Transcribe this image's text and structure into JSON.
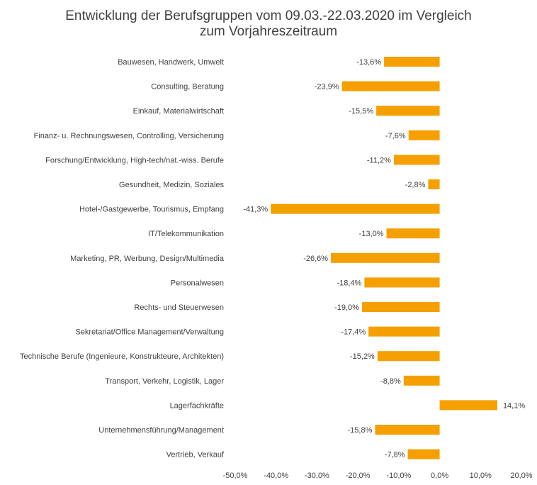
{
  "chart_data": {
    "type": "bar",
    "orientation": "horizontal",
    "title": [
      "Entwicklung der Berufsgruppen vom 09.03.-22.03.2020 im Vergleich",
      "zum Vorjahreszeitraum"
    ],
    "categories": [
      "Bauwesen, Handwerk, Umwelt",
      "Consulting, Beratung",
      "Einkauf, Materialwirtschaft",
      "Finanz- u. Rechnungswesen, Controlling, Versicherung",
      "Forschung/Entwicklung, High-tech/nat.-wiss. Berufe",
      "Gesundheit, Medizin, Soziales",
      "Hotel-/Gastgewerbe, Tourismus, Empfang",
      "IT/Telekommunikation",
      "Marketing, PR, Werbung, Design/Multimedia",
      "Personalwesen",
      "Rechts- und Steuerwesen",
      "Sekretariat/Office Management/Verwaltung",
      "Technische Berufe (Ingenieure, Konstrukteure, Architekten)",
      "Transport, Verkehr, Logistik, Lager",
      "Lagerfachkräfte",
      "Unternehmensführung/Management",
      "Vertrieb, Verkauf"
    ],
    "values": [
      -13.6,
      -23.9,
      -15.5,
      -7.6,
      -11.2,
      -2.8,
      -41.3,
      -13.0,
      -26.6,
      -18.4,
      -19.0,
      -17.4,
      -15.2,
      -8.8,
      14.1,
      -15.8,
      -7.8
    ],
    "data_labels": [
      "-13,6%",
      "-23,9%",
      "-15,5%",
      "-7,6%",
      "-11,2%",
      "-2,8%",
      "-41,3%",
      "-13,0%",
      "-26,6%",
      "-18,4%",
      "-19,0%",
      "-17,4%",
      "-15,2%",
      "-8,8%",
      "14,1%",
      "-15,8%",
      "-7,8%"
    ],
    "xlim": [
      -50,
      20
    ],
    "x_ticks": [
      -50,
      -40,
      -30,
      -20,
      -10,
      0,
      10,
      20
    ],
    "x_tick_labels": [
      "-50,0%",
      "-40,0%",
      "-30,0%",
      "-20,0%",
      "-10,0%",
      "0,0%",
      "10,0%",
      "20,0%"
    ],
    "xlabel": "",
    "ylabel": "",
    "grid": false,
    "legend": "none",
    "bar_color": "#F5A000",
    "text_color": "#404040"
  }
}
